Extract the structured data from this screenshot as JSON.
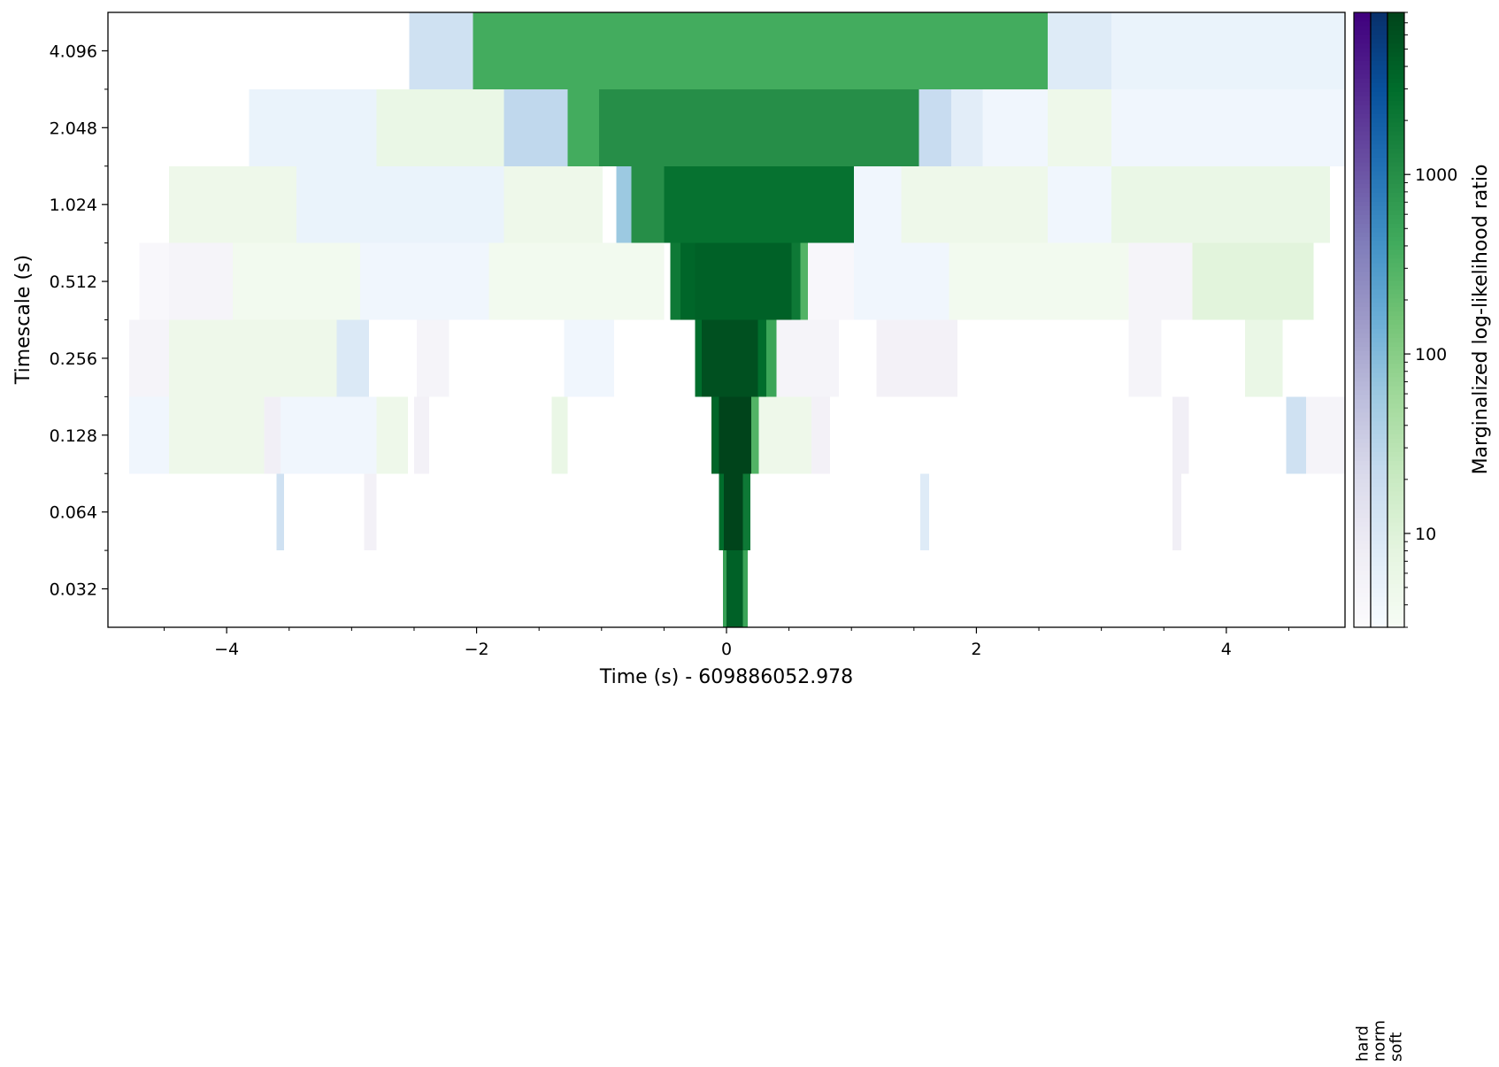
{
  "chart_data": {
    "type": "heatmap",
    "title": "",
    "xlabel": "Time (s) - 609886052.978",
    "ylabel": "Timescale (s)",
    "xlim": [
      -4.95,
      4.95
    ],
    "x_ticks": [
      -4,
      -2,
      0,
      2,
      4
    ],
    "x_tick_labels": [
      "−4",
      "−2",
      "0",
      "2",
      "4"
    ],
    "y_categories": [
      "4.096",
      "2.048",
      "1.024",
      "0.512",
      "0.256",
      "0.128",
      "0.064",
      "0.032"
    ],
    "grid": false,
    "colorbar": {
      "label": "Marginalized log-likelihood ratio",
      "scale": "log",
      "range": [
        3,
        8000
      ],
      "ticks": [
        10,
        100,
        1000
      ],
      "tick_labels": [
        "10",
        "100",
        "1000"
      ],
      "columns": [
        {
          "name": "hard",
          "colormap": "Purples",
          "top_color": "#3f007d"
        },
        {
          "name": "norm",
          "colormap": "Blues",
          "top_color": "#08306b"
        },
        {
          "name": "soft",
          "colormap": "Greens",
          "top_color": "#00441b"
        }
      ]
    },
    "rows": [
      {
        "timescale": "4.096",
        "cells": [
          {
            "t0": -2.54,
            "t1": -2.03,
            "cmap": "norm",
            "value": 15
          },
          {
            "t0": -2.03,
            "t1": 2.57,
            "cmap": "soft",
            "value": 400
          },
          {
            "t0": 2.57,
            "t1": 3.08,
            "cmap": "norm",
            "value": 8
          },
          {
            "t0": 3.08,
            "t1": 4.95,
            "cmap": "norm",
            "value": 5
          }
        ]
      },
      {
        "timescale": "2.048",
        "cells": [
          {
            "t0": -3.82,
            "t1": -2.8,
            "cmap": "norm",
            "value": 5
          },
          {
            "t0": -2.8,
            "t1": -1.78,
            "cmap": "soft",
            "value": 6
          },
          {
            "t0": -1.78,
            "t1": -1.27,
            "cmap": "norm",
            "value": 25
          },
          {
            "t0": -1.27,
            "t1": -1.02,
            "cmap": "soft",
            "value": 400
          },
          {
            "t0": -1.02,
            "t1": 1.54,
            "cmap": "soft",
            "value": 1000
          },
          {
            "t0": 1.54,
            "t1": 1.8,
            "cmap": "norm",
            "value": 20
          },
          {
            "t0": 1.8,
            "t1": 2.05,
            "cmap": "norm",
            "value": 7
          },
          {
            "t0": 2.05,
            "t1": 2.57,
            "cmap": "norm",
            "value": 4
          },
          {
            "t0": 2.57,
            "t1": 3.08,
            "cmap": "soft",
            "value": 5
          },
          {
            "t0": 3.08,
            "t1": 4.95,
            "cmap": "norm",
            "value": 4
          }
        ]
      },
      {
        "timescale": "1.024",
        "cells": [
          {
            "t0": -4.46,
            "t1": -3.44,
            "cmap": "soft",
            "value": 5
          },
          {
            "t0": -3.44,
            "t1": -1.78,
            "cmap": "norm",
            "value": 5
          },
          {
            "t0": -1.78,
            "t1": -0.99,
            "cmap": "soft",
            "value": 5
          },
          {
            "t0": -0.88,
            "t1": -0.76,
            "cmap": "norm",
            "value": 60
          },
          {
            "t0": -0.76,
            "t1": -0.5,
            "cmap": "soft",
            "value": 1000
          },
          {
            "t0": -0.5,
            "t1": 1.02,
            "cmap": "soft",
            "value": 2500
          },
          {
            "t0": 1.02,
            "t1": 1.4,
            "cmap": "norm",
            "value": 4
          },
          {
            "t0": 1.4,
            "t1": 2.57,
            "cmap": "soft",
            "value": 5
          },
          {
            "t0": 2.57,
            "t1": 3.08,
            "cmap": "norm",
            "value": 4
          },
          {
            "t0": 3.08,
            "t1": 4.83,
            "cmap": "soft",
            "value": 6
          }
        ]
      },
      {
        "timescale": "0.512",
        "cells": [
          {
            "t0": -4.7,
            "t1": -4.46,
            "cmap": "hard",
            "value": 4
          },
          {
            "t0": -4.46,
            "t1": -3.95,
            "cmap": "hard",
            "value": 5
          },
          {
            "t0": -3.95,
            "t1": -2.93,
            "cmap": "soft",
            "value": 4
          },
          {
            "t0": -2.93,
            "t1": -1.9,
            "cmap": "norm",
            "value": 4
          },
          {
            "t0": -1.9,
            "t1": -0.5,
            "cmap": "soft",
            "value": 4
          },
          {
            "t0": -0.45,
            "t1": -0.37,
            "cmap": "soft",
            "value": 2000
          },
          {
            "t0": -0.37,
            "t1": -0.25,
            "cmap": "soft",
            "value": 3500
          },
          {
            "t0": -0.25,
            "t1": 0.52,
            "cmap": "soft",
            "value": 4000
          },
          {
            "t0": 0.52,
            "t1": 0.59,
            "cmap": "soft",
            "value": 2000
          },
          {
            "t0": 0.59,
            "t1": 0.65,
            "cmap": "soft",
            "value": 300
          },
          {
            "t0": 0.65,
            "t1": 1.02,
            "cmap": "hard",
            "value": 4
          },
          {
            "t0": 1.02,
            "t1": 1.78,
            "cmap": "norm",
            "value": 4
          },
          {
            "t0": 1.78,
            "t1": 3.22,
            "cmap": "soft",
            "value": 4
          },
          {
            "t0": 3.22,
            "t1": 3.73,
            "cmap": "hard",
            "value": 5
          },
          {
            "t0": 3.73,
            "t1": 4.7,
            "cmap": "soft",
            "value": 9
          }
        ]
      },
      {
        "timescale": "0.256",
        "cells": [
          {
            "t0": -4.78,
            "t1": -4.46,
            "cmap": "hard",
            "value": 5
          },
          {
            "t0": -4.46,
            "t1": -2.93,
            "cmap": "soft",
            "value": 5
          },
          {
            "t0": -3.12,
            "t1": -2.86,
            "cmap": "norm",
            "value": 9
          },
          {
            "t0": -2.48,
            "t1": -2.22,
            "cmap": "hard",
            "value": 5
          },
          {
            "t0": -1.3,
            "t1": -0.9,
            "cmap": "norm",
            "value": 4
          },
          {
            "t0": -0.25,
            "t1": -0.2,
            "cmap": "soft",
            "value": 3000
          },
          {
            "t0": -0.2,
            "t1": 0.25,
            "cmap": "soft",
            "value": 6000
          },
          {
            "t0": 0.25,
            "t1": 0.32,
            "cmap": "soft",
            "value": 3000
          },
          {
            "t0": 0.32,
            "t1": 0.4,
            "cmap": "soft",
            "value": 500
          },
          {
            "t0": 0.4,
            "t1": 0.9,
            "cmap": "hard",
            "value": 5
          },
          {
            "t0": 1.2,
            "t1": 1.85,
            "cmap": "hard",
            "value": 6
          },
          {
            "t0": 3.22,
            "t1": 3.48,
            "cmap": "hard",
            "value": 5
          },
          {
            "t0": 4.15,
            "t1": 4.45,
            "cmap": "soft",
            "value": 6
          }
        ]
      },
      {
        "timescale": "0.128",
        "cells": [
          {
            "t0": -4.78,
            "t1": -4.46,
            "cmap": "norm",
            "value": 4
          },
          {
            "t0": -4.46,
            "t1": -3.7,
            "cmap": "soft",
            "value": 5
          },
          {
            "t0": -3.7,
            "t1": -3.57,
            "cmap": "hard",
            "value": 7
          },
          {
            "t0": -3.57,
            "t1": -2.8,
            "cmap": "norm",
            "value": 4
          },
          {
            "t0": -2.8,
            "t1": -2.55,
            "cmap": "soft",
            "value": 5
          },
          {
            "t0": -2.5,
            "t1": -2.38,
            "cmap": "hard",
            "value": 6
          },
          {
            "t0": -1.4,
            "t1": -1.27,
            "cmap": "soft",
            "value": 6
          },
          {
            "t0": -0.12,
            "t1": -0.06,
            "cmap": "soft",
            "value": 3500
          },
          {
            "t0": -0.06,
            "t1": 0.2,
            "cmap": "soft",
            "value": 8000
          },
          {
            "t0": 0.2,
            "t1": 0.26,
            "cmap": "soft",
            "value": 300
          },
          {
            "t0": 0.26,
            "t1": 0.68,
            "cmap": "soft",
            "value": 5
          },
          {
            "t0": 0.68,
            "t1": 0.83,
            "cmap": "hard",
            "value": 6
          },
          {
            "t0": 3.57,
            "t1": 3.7,
            "cmap": "hard",
            "value": 7
          },
          {
            "t0": 4.48,
            "t1": 4.64,
            "cmap": "norm",
            "value": 15
          },
          {
            "t0": 4.64,
            "t1": 4.95,
            "cmap": "hard",
            "value": 5
          }
        ]
      },
      {
        "timescale": "0.064",
        "cells": [
          {
            "t0": -3.6,
            "t1": -3.54,
            "cmap": "norm",
            "value": 15
          },
          {
            "t0": -2.9,
            "t1": -2.8,
            "cmap": "hard",
            "value": 6
          },
          {
            "t0": -0.06,
            "t1": -0.02,
            "cmap": "soft",
            "value": 3000
          },
          {
            "t0": -0.02,
            "t1": 0.13,
            "cmap": "soft",
            "value": 8000
          },
          {
            "t0": 0.13,
            "t1": 0.19,
            "cmap": "soft",
            "value": 2000
          },
          {
            "t0": 1.55,
            "t1": 1.62,
            "cmap": "norm",
            "value": 8
          },
          {
            "t0": 3.57,
            "t1": 3.64,
            "cmap": "hard",
            "value": 7
          }
        ]
      },
      {
        "timescale": "0.032",
        "cells": [
          {
            "t0": -0.03,
            "t1": 0.0,
            "cmap": "soft",
            "value": 600
          },
          {
            "t0": 0.0,
            "t1": 0.13,
            "cmap": "soft",
            "value": 4000
          },
          {
            "t0": 0.13,
            "t1": 0.17,
            "cmap": "soft",
            "value": 500
          }
        ]
      }
    ]
  }
}
